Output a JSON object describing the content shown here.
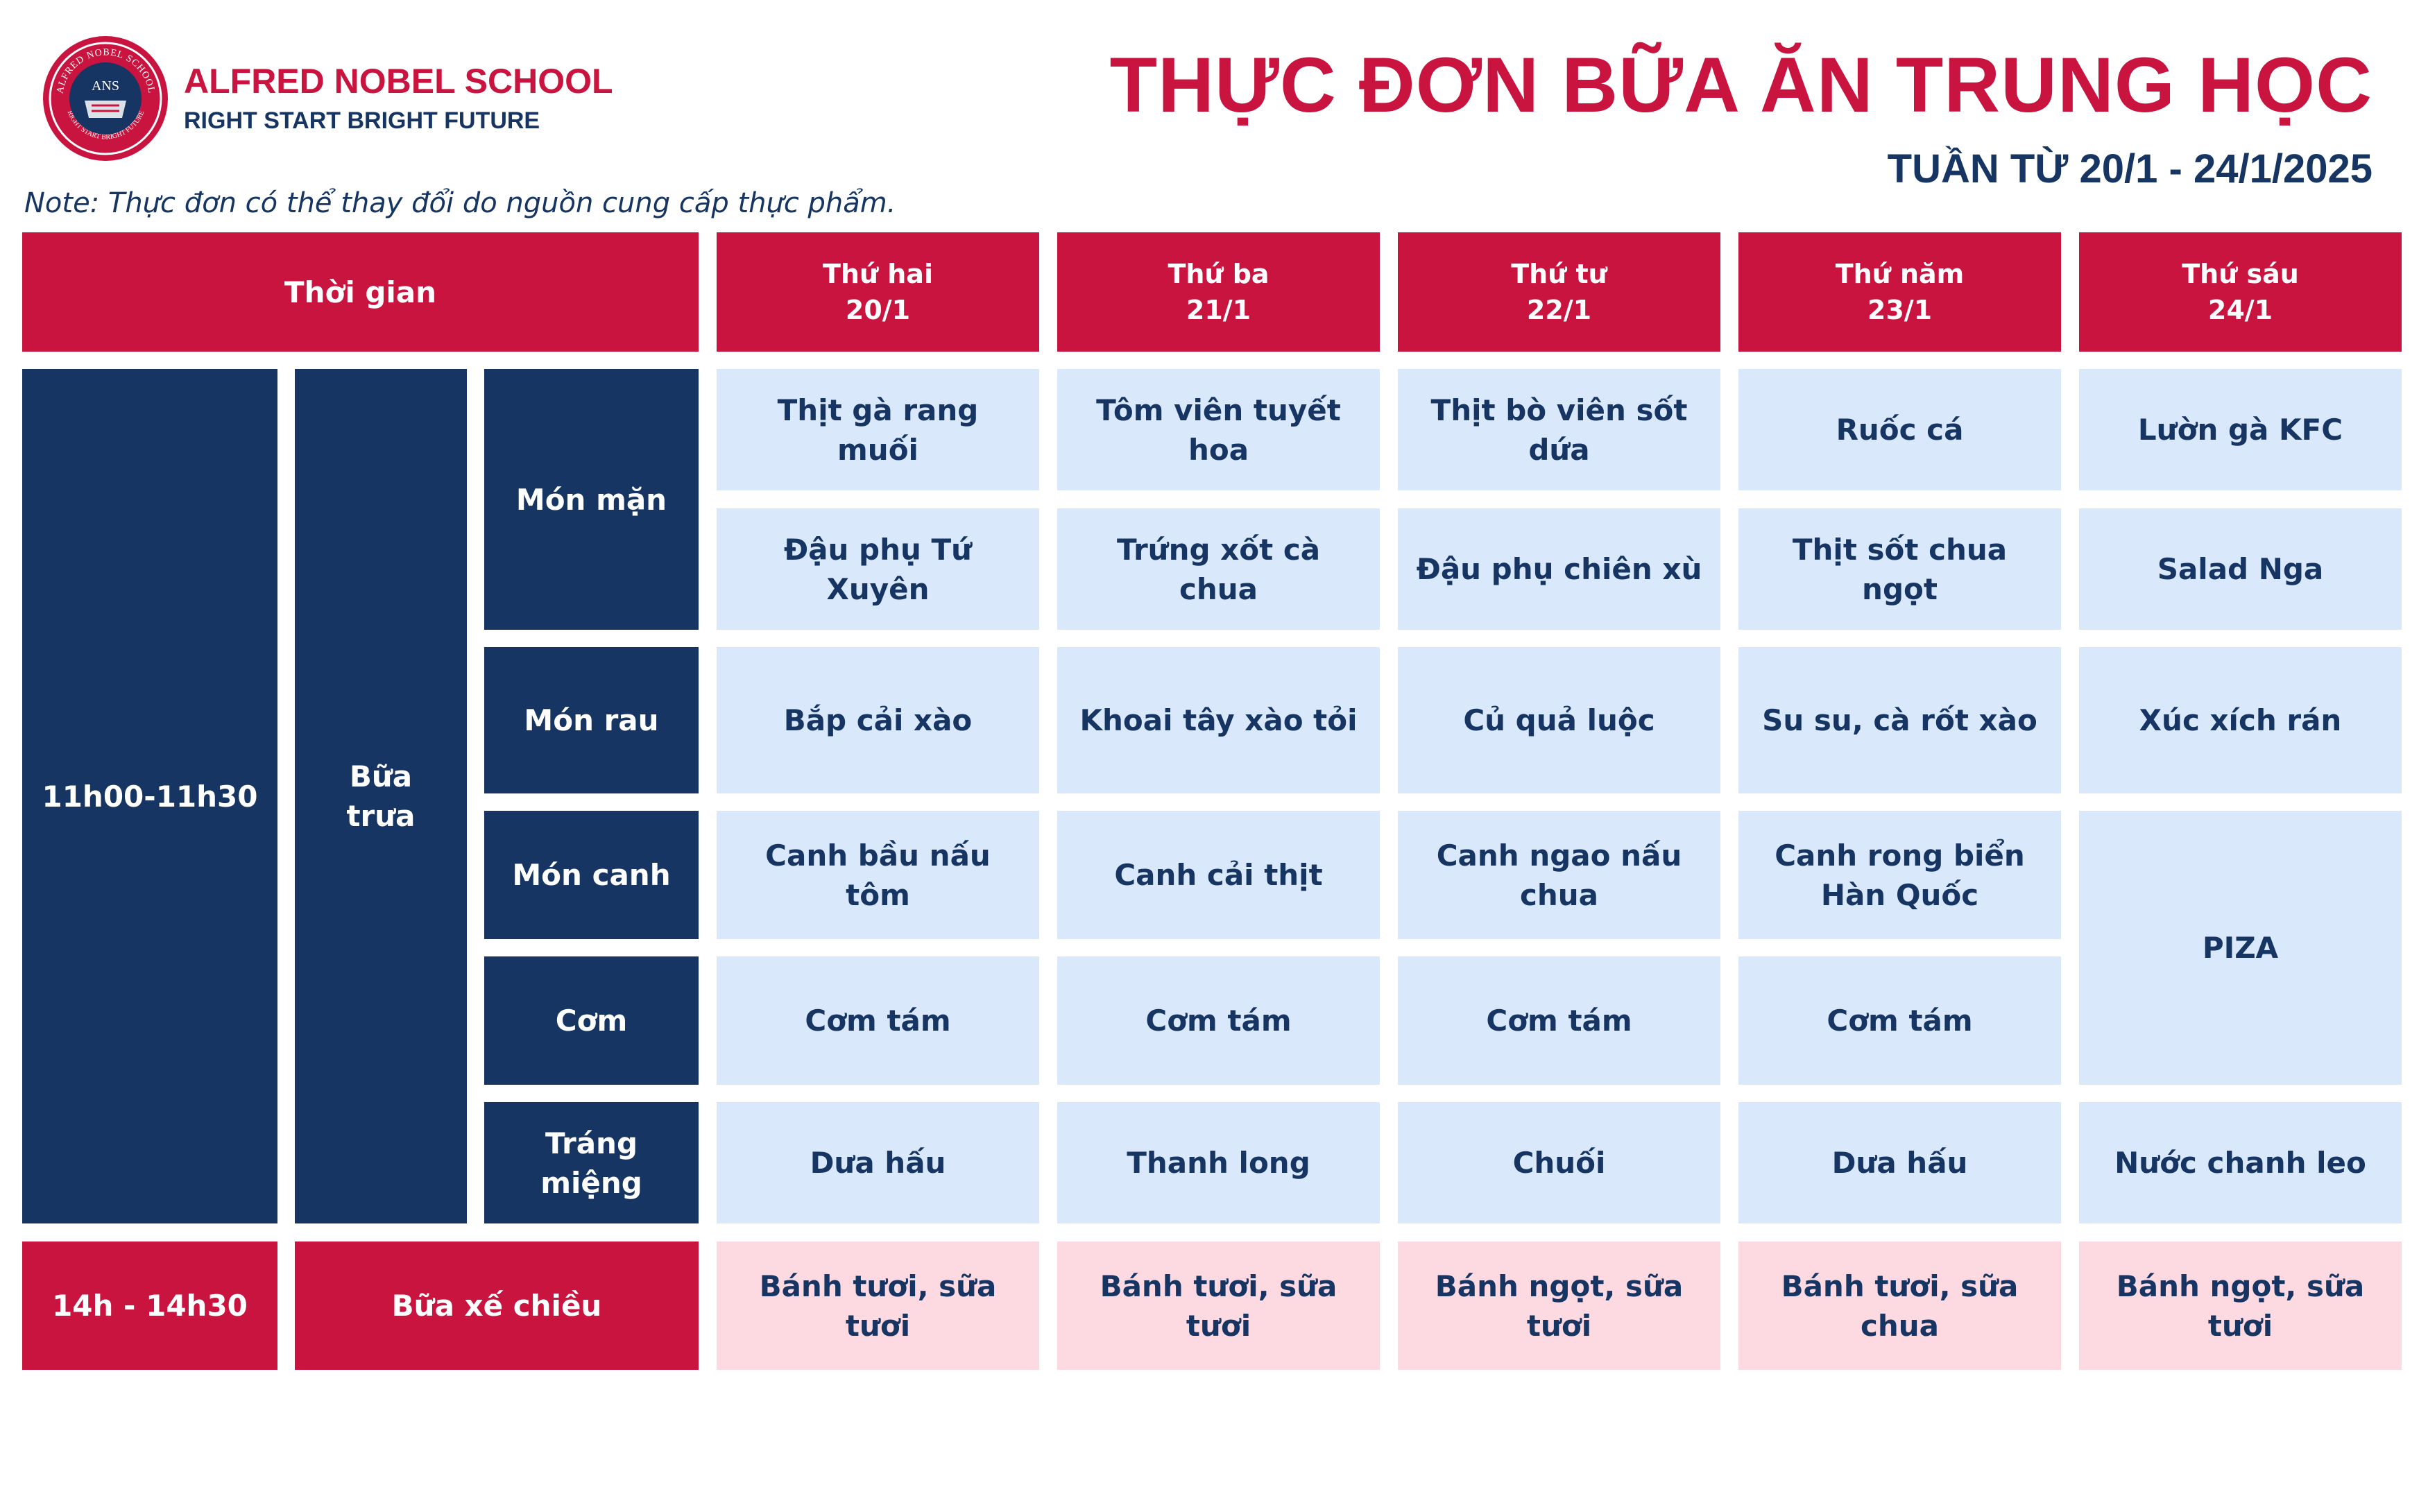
{
  "header": {
    "logo_text": "ANS",
    "logo_ring_text": "ALFRED NOBEL SCHOOL",
    "logo_ring_bottom": "RIGHT START BRIGHT FUTURE",
    "school_name": "ALFRED NOBEL SCHOOL",
    "slogan": "RIGHT START  BRIGHT FUTURE",
    "title": "THỰC ĐƠN BỮA ĂN TRUNG HỌC",
    "subtitle": "TUẦN TỪ 20/1 - 24/1/2025",
    "note": "Note: Thực đơn có thể thay đổi do nguồn cung cấp thực phẩm."
  },
  "table": {
    "time_header": "Thời gian",
    "days": [
      {
        "name": "Thứ hai",
        "date": "20/1"
      },
      {
        "name": "Thứ ba",
        "date": "21/1"
      },
      {
        "name": "Thứ tư",
        "date": "22/1"
      },
      {
        "name": "Thứ năm",
        "date": "23/1"
      },
      {
        "name": "Thứ sáu",
        "date": "24/1"
      }
    ],
    "lunch": {
      "time": "11h00-11h30",
      "label": "Bữa trưa",
      "categories": {
        "mon_man": "Món mặn",
        "mon_rau": "Món rau",
        "mon_canh": "Món canh",
        "com": "Cơm",
        "trang_mieng": "Tráng miệng"
      },
      "rows": {
        "mon_man_1": [
          "Thịt gà rang muối",
          "Tôm viên tuyết hoa",
          "Thịt bò viên sốt dứa",
          "Ruốc cá",
          "Lườn gà KFC"
        ],
        "mon_man_2": [
          "Đậu phụ Tứ Xuyên",
          "Trứng xốt cà chua",
          "Đậu phụ chiên xù",
          "Thịt sốt chua ngọt",
          "Salad Nga"
        ],
        "mon_rau": [
          "Bắp cải xào",
          "Khoai tây xào tỏi",
          "Củ quả luộc",
          "Su su, cà rốt xào",
          "Xúc xích rán"
        ],
        "mon_canh": [
          "Canh bầu nấu tôm",
          "Canh cải thịt",
          "Canh ngao nấu chua",
          "Canh rong biển Hàn Quốc"
        ],
        "com": [
          "Cơm tám",
          "Cơm tám",
          "Cơm tám",
          "Cơm tám"
        ],
        "friday_canh_com": "PIZA",
        "trang_mieng": [
          "Dưa hấu",
          "Thanh long",
          "Chuối",
          "Dưa hấu",
          "Nước chanh leo"
        ]
      }
    },
    "snack": {
      "time": "14h - 14h30",
      "label": "Bữa xế chiều",
      "items": [
        "Bánh tươi, sữa tươi",
        "Bánh tươi, sữa tươi",
        "Bánh ngọt, sữa tươi",
        "Bánh tươi, sữa chua",
        "Bánh ngọt, sữa tươi"
      ]
    }
  },
  "colors": {
    "red": "#c8143f",
    "navy": "#163562",
    "light_blue": "#d9e8fb",
    "pink": "#fdd9e2"
  }
}
